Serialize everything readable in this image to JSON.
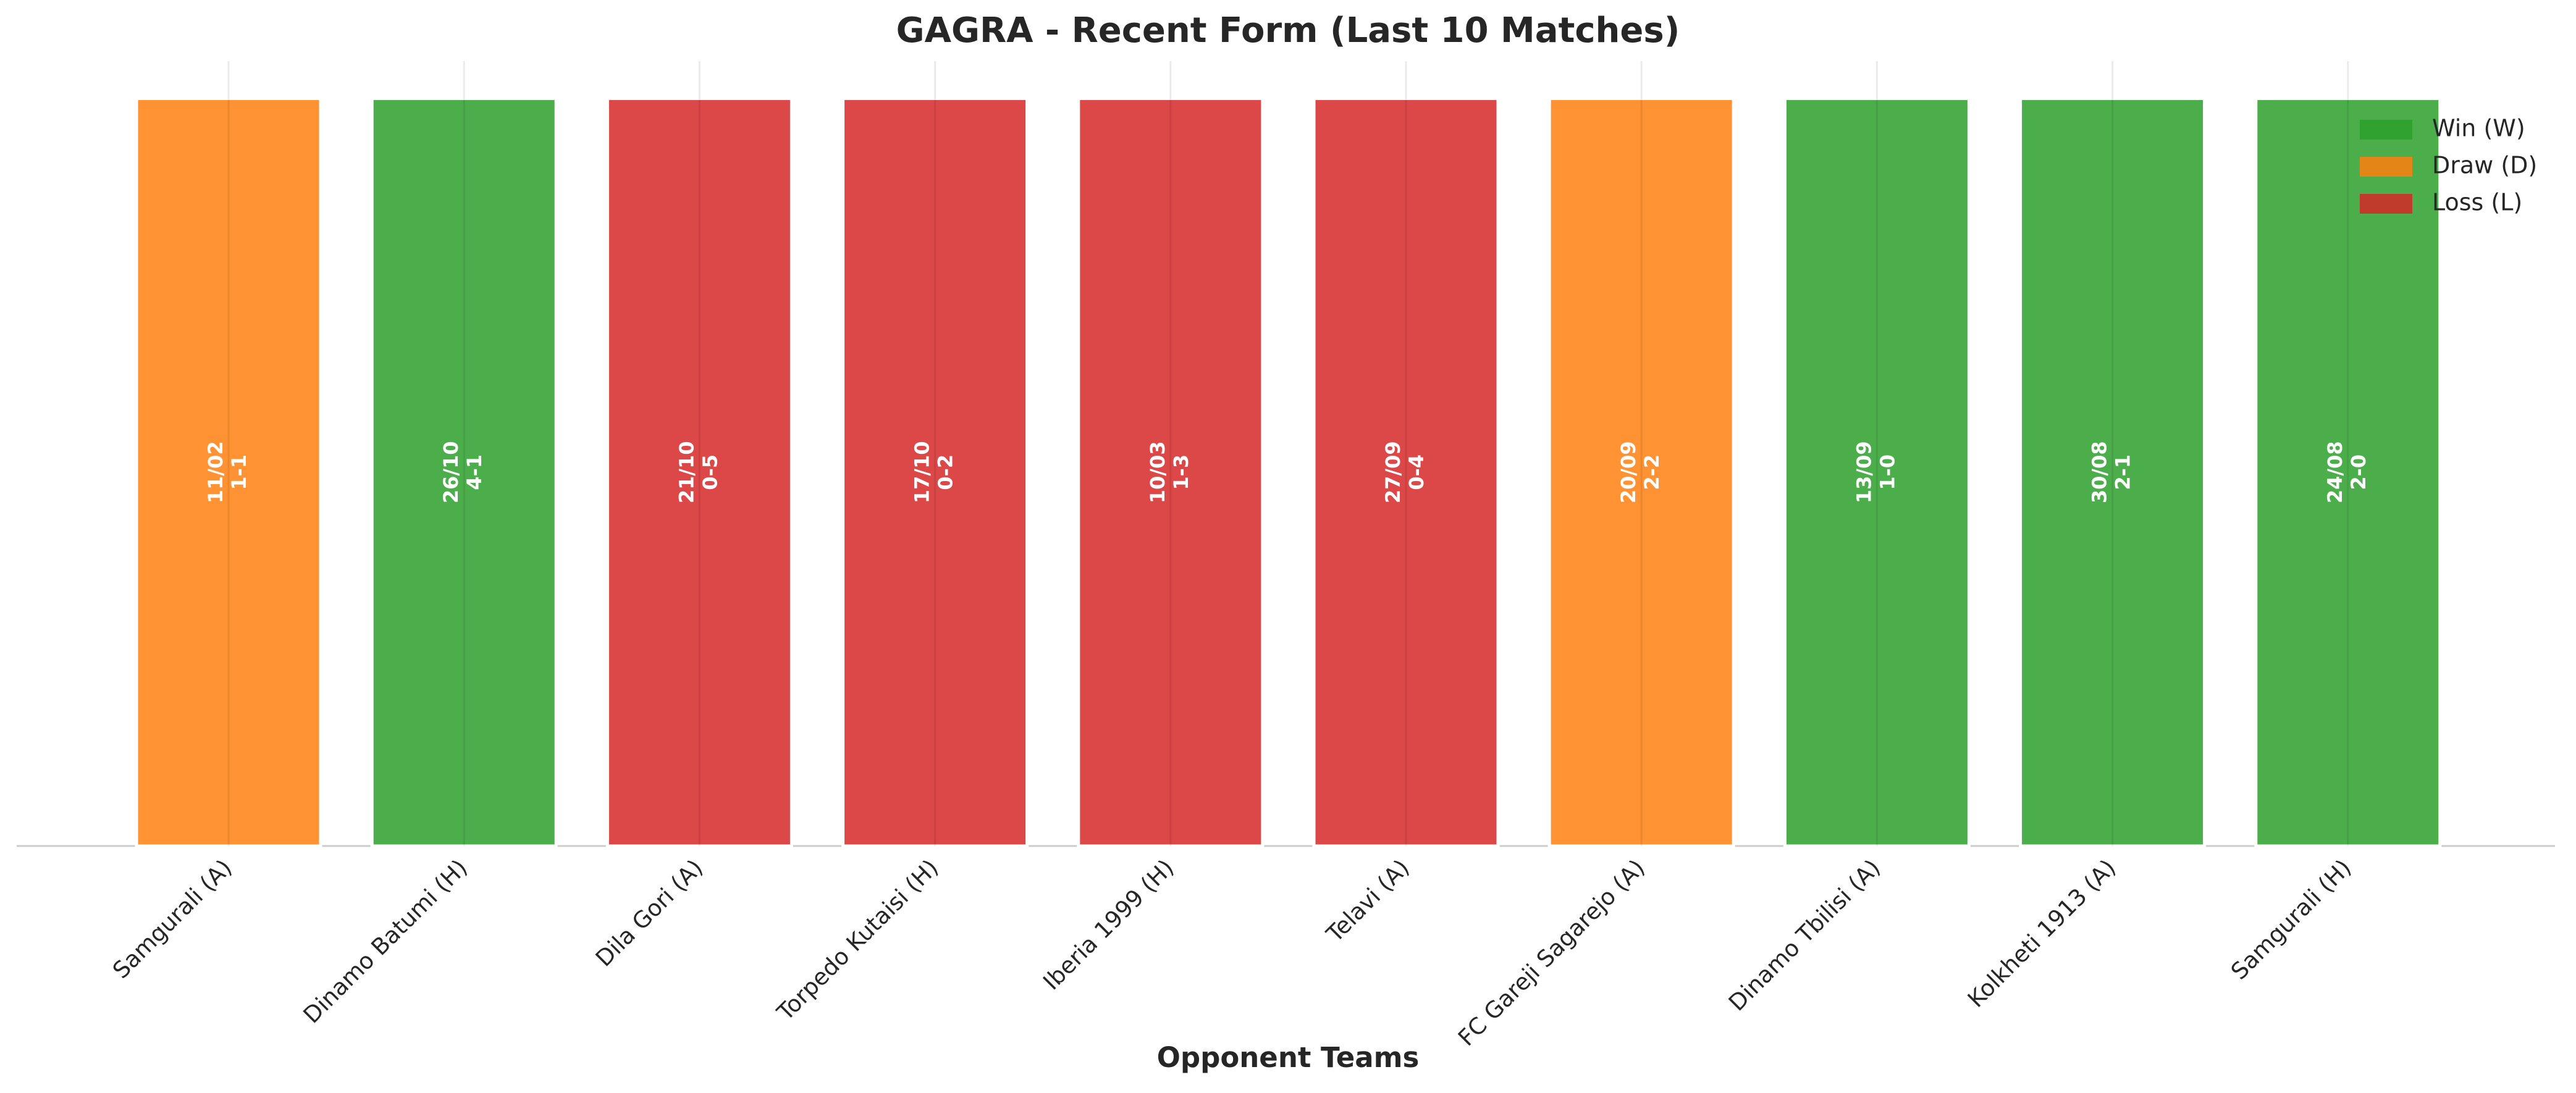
{
  "chart_data": {
    "type": "bar",
    "title": "GAGRA - Recent Form (Last 10 Matches)",
    "x_label": "Opponent Teams",
    "categories": [
      "Samgurali (A)",
      "Dinamo Batumi (H)",
      "Dila Gori (A)",
      "Torpedo Kutaisi (H)",
      "Iberia 1999 (H)",
      "Telavi (A)",
      "FC Gareji Sagarejo (A)",
      "Dinamo Tbilisi (A)",
      "Kolkheti 1913 (A)",
      "Samgurali (H)"
    ],
    "values": [
      1,
      1,
      1,
      1,
      1,
      1,
      1,
      1,
      1,
      1
    ],
    "dates": [
      "11/02",
      "26/10",
      "21/10",
      "17/10",
      "10/03",
      "27/09",
      "20/09",
      "13/09",
      "30/08",
      "24/08"
    ],
    "scores": [
      "1-1",
      "4-1",
      "0-5",
      "0-2",
      "1-3",
      "0-4",
      "2-2",
      "1-0",
      "2-1",
      "2-0"
    ],
    "colors": [
      "#ff7f0e",
      "#2ca02c",
      "#d62728",
      "#d62728",
      "#d62728",
      "#d62728",
      "#ff7f0e",
      "#2ca02c",
      "#2ca02c",
      "#2ca02c"
    ],
    "opacity": 0.85,
    "ylim": [
      0,
      1.05
    ],
    "grid": true,
    "legend_position": "upper right",
    "legend": [
      {
        "name": "Win (W)",
        "color": "#2ca02c"
      },
      {
        "name": "Draw (D)",
        "color": "#ff7f0e"
      },
      {
        "name": "Loss (L)",
        "color": "#d62728"
      }
    ]
  }
}
